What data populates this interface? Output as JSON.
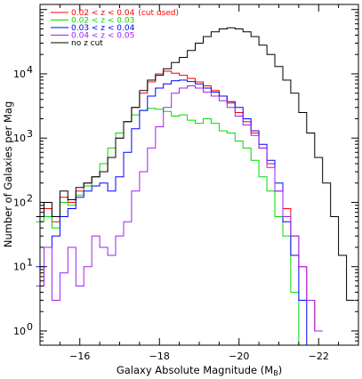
{
  "chart_data": {
    "type": "line",
    "step": true,
    "xlabel": "Galaxy Absolute Magnitude (M",
    "xlabel_sub": "B",
    "xlabel_close": ")",
    "ylabel": "Number of Galaxies per Mag",
    "xlim": [
      -15,
      -23
    ],
    "ylim": [
      0.6,
      120000
    ],
    "yscale": "log",
    "xticks": [
      -16,
      -18,
      -20,
      -22
    ],
    "yticks": [
      {
        "value": 1,
        "label": "10",
        "exp": "0"
      },
      {
        "value": 10,
        "label": "10",
        "exp": "1"
      },
      {
        "value": 100,
        "label": "10",
        "exp": "2"
      },
      {
        "value": 1000,
        "label": "10",
        "exp": "3"
      },
      {
        "value": 10000,
        "label": "10",
        "exp": "4"
      }
    ],
    "legend_position": "top-left",
    "series": [
      {
        "name": "0.02 < z < 0.04",
        "note": "(cut used)",
        "color": "#ff0000",
        "x": [
          -15.0,
          -15.2,
          -15.4,
          -15.6,
          -15.8,
          -16.0,
          -16.2,
          -16.4,
          -16.6,
          -16.8,
          -17.0,
          -17.2,
          -17.4,
          -17.6,
          -17.8,
          -18.0,
          -18.2,
          -18.4,
          -18.6,
          -18.8,
          -19.0,
          -19.2,
          -19.4,
          -19.6,
          -19.8,
          -20.0,
          -20.2,
          -20.4,
          -20.6,
          -20.8,
          -21.0,
          -21.2,
          -21.4,
          -21.6,
          -21.8,
          -22.0
        ],
        "y": [
          60,
          80,
          50,
          120,
          100,
          150,
          200,
          250,
          300,
          500,
          1000,
          1800,
          3000,
          5000,
          7500,
          10000,
          11000,
          10200,
          9500,
          8500,
          7500,
          6500,
          5500,
          4500,
          3500,
          2500,
          1800,
          1200,
          700,
          400,
          150,
          80,
          30,
          10,
          3,
          1
        ]
      },
      {
        "name": "0.02 < z < 0.03",
        "note": "",
        "color": "#00dd00",
        "x": [
          -15.0,
          -15.2,
          -15.4,
          -15.6,
          -15.8,
          -16.0,
          -16.2,
          -16.4,
          -16.6,
          -16.8,
          -17.0,
          -17.2,
          -17.4,
          -17.6,
          -17.8,
          -18.0,
          -18.2,
          -18.4,
          -18.6,
          -18.8,
          -19.0,
          -19.2,
          -19.4,
          -19.6,
          -19.8,
          -20.0,
          -20.2,
          -20.4,
          -20.6,
          -20.8,
          -21.0,
          -21.2,
          -21.4,
          -21.6,
          -21.8,
          -22.0
        ],
        "y": [
          50,
          60,
          40,
          100,
          90,
          130,
          180,
          250,
          400,
          700,
          1200,
          1800,
          2300,
          2700,
          2900,
          2800,
          2600,
          2200,
          2300,
          1900,
          1700,
          2000,
          1700,
          1300,
          1200,
          900,
          700,
          450,
          250,
          150,
          60,
          30,
          4,
          0.5,
          0.5,
          0.5
        ]
      },
      {
        "name": "0.03 < z < 0.04",
        "note": "",
        "color": "#0000ff",
        "x": [
          -15.0,
          -15.2,
          -15.4,
          -15.6,
          -15.8,
          -16.0,
          -16.2,
          -16.4,
          -16.6,
          -16.8,
          -17.0,
          -17.2,
          -17.4,
          -17.6,
          -17.8,
          -18.0,
          -18.2,
          -18.4,
          -18.6,
          -18.8,
          -19.0,
          -19.2,
          -19.4,
          -19.6,
          -19.8,
          -20.0,
          -20.2,
          -20.4,
          -20.6,
          -20.8,
          -21.0,
          -21.2,
          -21.4,
          -21.6,
          -21.8,
          -22.0
        ],
        "y": [
          10,
          20,
          30,
          60,
          80,
          120,
          150,
          180,
          200,
          150,
          250,
          600,
          1400,
          2700,
          4500,
          6000,
          7000,
          7800,
          8000,
          7600,
          7000,
          6000,
          5200,
          4500,
          3700,
          3000,
          2000,
          1300,
          800,
          450,
          200,
          50,
          15,
          3,
          0.5,
          0.5
        ]
      },
      {
        "name": "0.04 < z < 0.05",
        "note": "",
        "color": "#a020f0",
        "x": [
          -15.0,
          -15.2,
          -15.4,
          -15.6,
          -15.8,
          -16.0,
          -16.2,
          -16.4,
          -16.6,
          -16.8,
          -17.0,
          -17.2,
          -17.4,
          -17.6,
          -17.8,
          -18.0,
          -18.2,
          -18.4,
          -18.6,
          -18.8,
          -19.0,
          -19.2,
          -19.4,
          -19.6,
          -19.8,
          -20.0,
          -20.2,
          -20.4,
          -20.6,
          -20.8,
          -21.0,
          -21.2,
          -21.4,
          -21.6,
          -21.8,
          -22.0
        ],
        "y": [
          5,
          20,
          3,
          8,
          20,
          5,
          10,
          30,
          20,
          15,
          30,
          50,
          150,
          300,
          700,
          1500,
          3000,
          5000,
          6000,
          6500,
          6000,
          5200,
          4500,
          3800,
          3000,
          2200,
          1600,
          1100,
          700,
          350,
          150,
          60,
          30,
          10,
          3,
          1
        ]
      },
      {
        "name": "no z cut",
        "note": "",
        "color": "#000000",
        "x": [
          -15.0,
          -15.2,
          -15.4,
          -15.6,
          -15.8,
          -16.0,
          -16.2,
          -16.4,
          -16.6,
          -16.8,
          -17.0,
          -17.2,
          -17.4,
          -17.6,
          -17.8,
          -18.0,
          -18.2,
          -18.4,
          -18.6,
          -18.8,
          -19.0,
          -19.2,
          -19.4,
          -19.6,
          -19.8,
          -20.0,
          -20.2,
          -20.4,
          -20.6,
          -20.8,
          -21.0,
          -21.2,
          -21.4,
          -21.6,
          -21.8,
          -22.0,
          -22.2,
          -22.4,
          -22.6,
          -22.8
        ],
        "y": [
          60,
          100,
          60,
          150,
          110,
          170,
          200,
          250,
          300,
          500,
          1000,
          1800,
          3000,
          5500,
          8000,
          9500,
          12000,
          15000,
          18000,
          23000,
          30000,
          38000,
          45000,
          50000,
          52000,
          50000,
          45000,
          38000,
          28000,
          20000,
          13000,
          8000,
          5000,
          2500,
          1200,
          500,
          200,
          60,
          15,
          3
        ]
      }
    ]
  }
}
